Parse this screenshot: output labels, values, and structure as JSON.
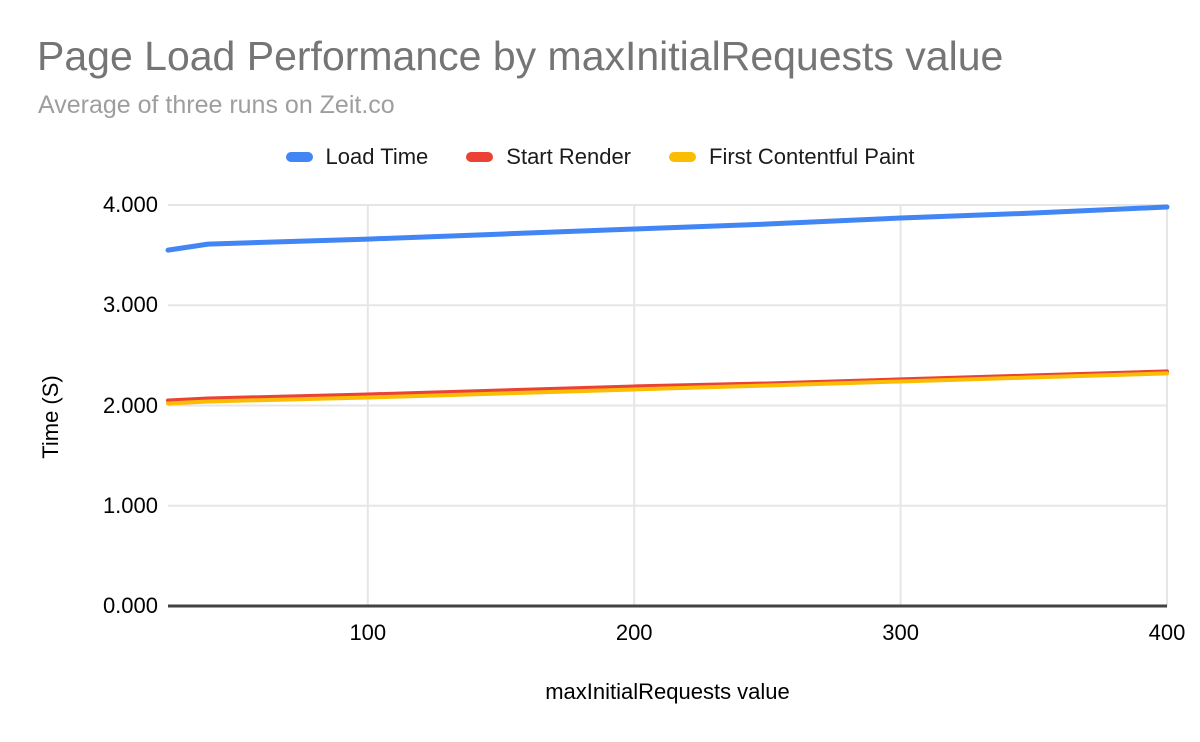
{
  "colors": {
    "background": "#ffffff",
    "title": "#757575",
    "subtitle": "#9e9e9e",
    "tick_text": "#000000",
    "grid": "#e6e6e6",
    "axis": "#424242"
  },
  "chart_data": {
    "type": "line",
    "title": "Page Load Performance by maxInitialRequests value",
    "subtitle": "Average of three runs on Zeit.co",
    "xlabel": "maxInitialRequests value",
    "ylabel": "Time (S)",
    "xlim": [
      25,
      400
    ],
    "ylim": [
      0,
      4
    ],
    "grid": true,
    "legend_position": "top",
    "x": [
      25,
      40,
      100,
      150,
      200,
      250,
      300,
      350,
      400
    ],
    "series": [
      {
        "name": "Load Time",
        "color": "#4285f4",
        "stroke_width": 5,
        "values": [
          3.55,
          3.61,
          3.66,
          3.71,
          3.76,
          3.81,
          3.87,
          3.92,
          3.98
        ]
      },
      {
        "name": "Start Render",
        "color": "#ea4335",
        "stroke_width": 4,
        "values": [
          2.05,
          2.07,
          2.11,
          2.15,
          2.19,
          2.22,
          2.26,
          2.3,
          2.34
        ]
      },
      {
        "name": "First Contentful Paint",
        "color": "#fbbc04",
        "stroke_width": 4,
        "values": [
          2.02,
          2.04,
          2.08,
          2.12,
          2.16,
          2.2,
          2.24,
          2.28,
          2.32
        ]
      }
    ],
    "x_ticks": [
      {
        "value": 100,
        "label": "100"
      },
      {
        "value": 200,
        "label": "200"
      },
      {
        "value": 300,
        "label": "300"
      },
      {
        "value": 400,
        "label": "400"
      }
    ],
    "y_ticks": [
      {
        "value": 0,
        "label": "0.000"
      },
      {
        "value": 1,
        "label": "1.000"
      },
      {
        "value": 2,
        "label": "2.000"
      },
      {
        "value": 3,
        "label": "3.000"
      },
      {
        "value": 4,
        "label": "4.000"
      }
    ]
  }
}
